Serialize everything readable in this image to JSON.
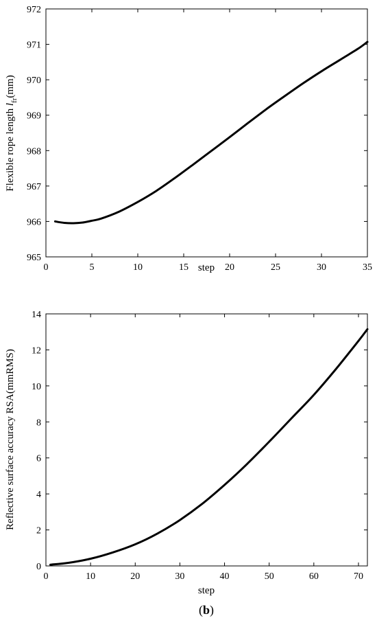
{
  "panel_label": {
    "open": "(",
    "letter": "b",
    "close": ")"
  },
  "chart_data": [
    {
      "type": "line",
      "xlabel": "step",
      "ylabel": {
        "main": "Flexible rope length ",
        "symbol": "l",
        "subscript": "fr",
        "unit": "(mm)"
      },
      "xlim": [
        0,
        35
      ],
      "ylim": [
        965,
        972
      ],
      "xticks": [
        0,
        5,
        10,
        15,
        20,
        25,
        30,
        35
      ],
      "yticks": [
        965,
        966,
        967,
        968,
        969,
        970,
        971,
        972
      ],
      "grid": false,
      "series": [
        {
          "color": "#000000",
          "x": [
            1,
            2,
            3,
            4,
            5,
            6,
            8,
            10,
            12,
            14,
            16,
            18,
            20,
            22,
            24,
            26,
            28,
            30,
            32,
            34,
            35
          ],
          "y": [
            966.0,
            965.96,
            965.95,
            965.97,
            966.02,
            966.08,
            966.28,
            966.55,
            966.86,
            967.22,
            967.6,
            967.99,
            968.38,
            968.78,
            969.17,
            969.54,
            969.9,
            970.24,
            970.56,
            970.88,
            971.07
          ]
        }
      ]
    },
    {
      "type": "line",
      "xlabel": "step",
      "ylabel": {
        "main": "Reflective surface accuracy  RSA(mmRMS)"
      },
      "xlim": [
        0,
        72
      ],
      "ylim": [
        0,
        14
      ],
      "xticks": [
        0,
        10,
        20,
        30,
        40,
        50,
        60,
        70
      ],
      "yticks": [
        0,
        2,
        4,
        6,
        8,
        10,
        12,
        14
      ],
      "grid": false,
      "series": [
        {
          "color": "#000000",
          "x": [
            1,
            5,
            10,
            15,
            20,
            25,
            30,
            35,
            40,
            45,
            50,
            55,
            60,
            65,
            70,
            72
          ],
          "y": [
            0.07,
            0.17,
            0.4,
            0.75,
            1.2,
            1.8,
            2.55,
            3.45,
            4.5,
            5.65,
            6.9,
            8.2,
            9.5,
            10.95,
            12.5,
            13.15
          ]
        }
      ]
    }
  ]
}
